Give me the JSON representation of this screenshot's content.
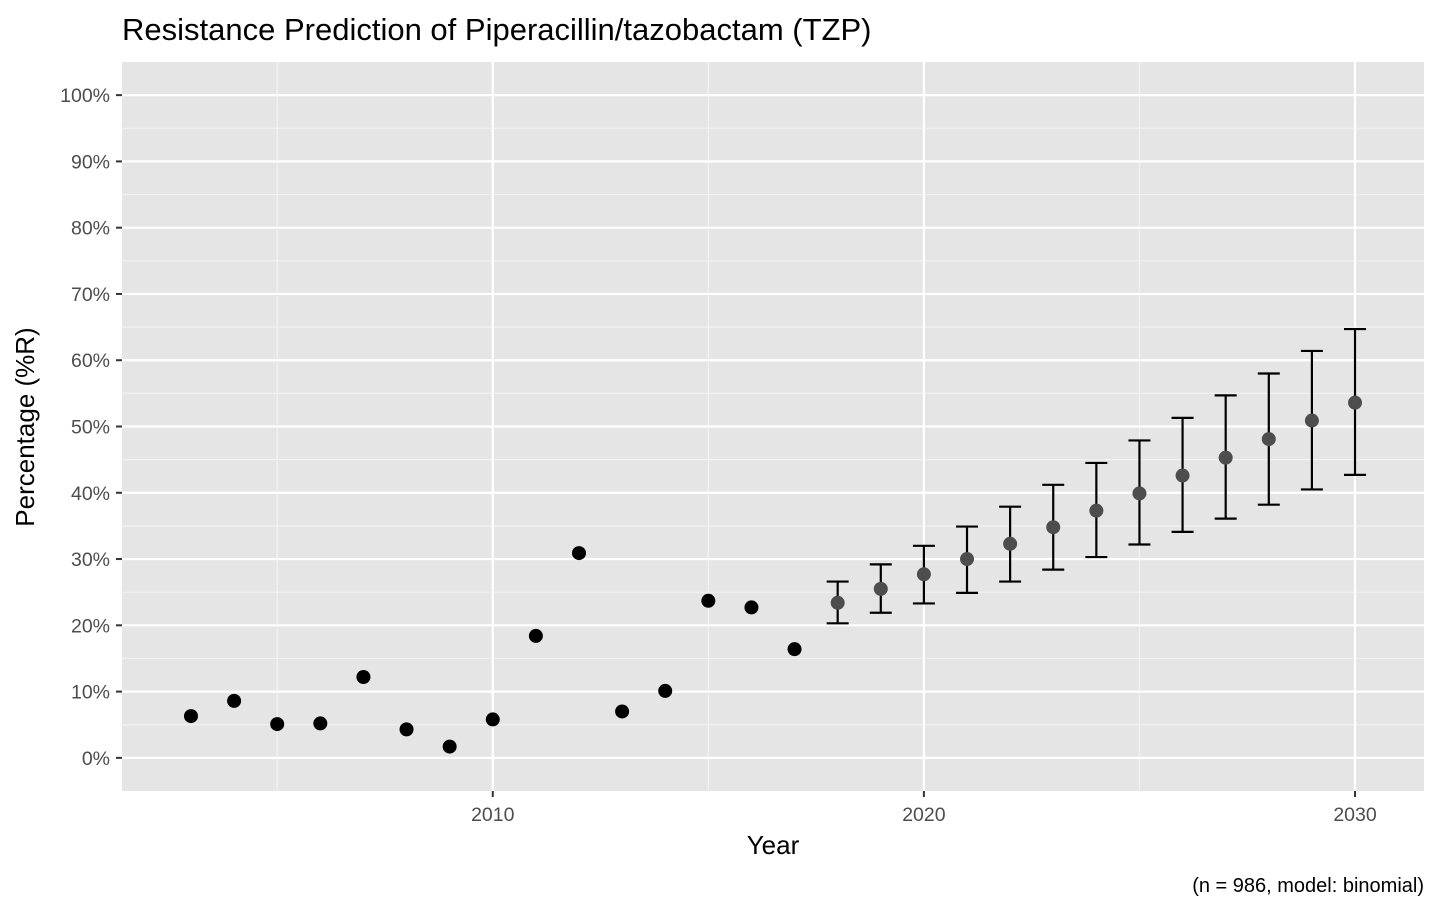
{
  "chart_data": {
    "type": "scatter",
    "title": "Resistance Prediction of Piperacillin/tazobactam (TZP)",
    "xlabel": "Year",
    "ylabel": "Percentage (%R)",
    "caption": "(n = 986, model: binomial)",
    "xlim": [
      2001.4,
      2031.6
    ],
    "ylim": [
      -0.05,
      1.05
    ],
    "x_ticks": [
      2010,
      2020,
      2030
    ],
    "x_tick_labels": [
      "2010",
      "2020",
      "2030"
    ],
    "y_ticks": [
      0,
      0.1,
      0.2,
      0.3,
      0.4,
      0.5,
      0.6,
      0.7,
      0.8,
      0.9,
      1.0
    ],
    "y_tick_labels": [
      "0%",
      "10%",
      "20%",
      "30%",
      "40%",
      "50%",
      "60%",
      "70%",
      "80%",
      "90%",
      "100%"
    ],
    "grid": true,
    "panel_background": "#e5e5e5",
    "observed_color": "#000000",
    "predicted_color": "#4d4d4d",
    "errorbar_color": "#000000",
    "observed": {
      "x": [
        2003,
        2004,
        2005,
        2006,
        2007,
        2008,
        2009,
        2010,
        2011,
        2012,
        2013,
        2014,
        2015,
        2016,
        2017
      ],
      "y": [
        0.063,
        0.086,
        0.051,
        0.052,
        0.122,
        0.043,
        0.017,
        0.058,
        0.184,
        0.309,
        0.07,
        0.101,
        0.237,
        0.227,
        0.164
      ]
    },
    "predicted": {
      "x": [
        2018,
        2019,
        2020,
        2021,
        2022,
        2023,
        2024,
        2025,
        2026,
        2027,
        2028,
        2029,
        2030
      ],
      "y": [
        0.234,
        0.255,
        0.277,
        0.3,
        0.323,
        0.348,
        0.373,
        0.399,
        0.426,
        0.453,
        0.481,
        0.509,
        0.536
      ],
      "lower": [
        0.203,
        0.219,
        0.233,
        0.249,
        0.266,
        0.284,
        0.303,
        0.322,
        0.341,
        0.361,
        0.382,
        0.405,
        0.427
      ],
      "upper": [
        0.266,
        0.292,
        0.32,
        0.349,
        0.379,
        0.412,
        0.445,
        0.479,
        0.513,
        0.547,
        0.58,
        0.614,
        0.647
      ]
    }
  }
}
